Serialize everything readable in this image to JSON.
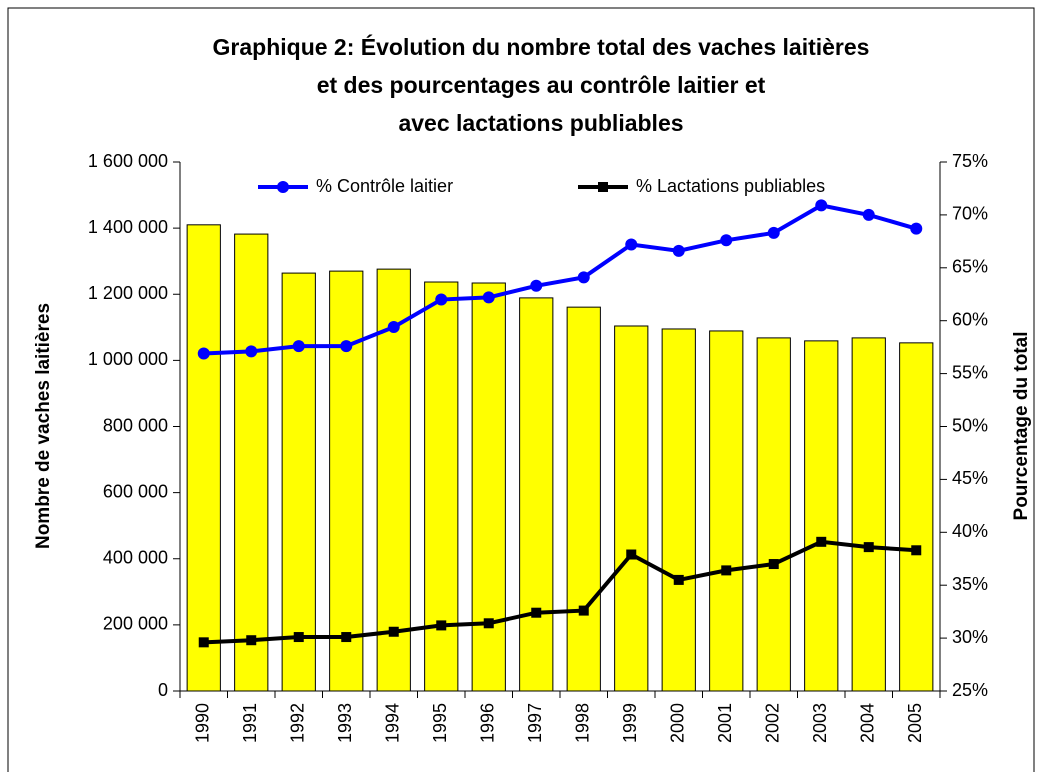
{
  "chart_data": {
    "type": "bar",
    "title": [
      "Graphique 2: Évolution du nombre total des vaches laitières",
      "et des pourcentages au contrôle laitier et",
      "avec lactations publiables"
    ],
    "y_label": "Nombre de vaches laitières",
    "y2_label": "Pourcentage du total",
    "categories": [
      "1990",
      "1991",
      "1992",
      "1993",
      "1994",
      "1995",
      "1996",
      "1997",
      "1998",
      "1999",
      "2000",
      "2001",
      "2002",
      "2003",
      "2004",
      "2005"
    ],
    "ylim": [
      0,
      1600000
    ],
    "yticks": [
      0,
      {
        "value": 200000,
        "label": "200 000"
      },
      {
        "value": 400000,
        "label": "400 000"
      },
      {
        "value": 600000,
        "label": "600 000"
      },
      {
        "value": 800000,
        "label": "800 000"
      },
      {
        "value": 1000000,
        "label": "1 000 000"
      },
      {
        "value": 1200000,
        "label": "1 200 000"
      },
      {
        "value": 1400000,
        "label": "1 400 000"
      },
      {
        "value": 1600000,
        "label": "1 600 000"
      }
    ],
    "y2lim": [
      25,
      75
    ],
    "y2ticks": [
      {
        "value": 25,
        "label": "25%"
      },
      {
        "value": 30,
        "label": "30%"
      },
      {
        "value": 35,
        "label": "35%"
      },
      {
        "value": 40,
        "label": "40%"
      },
      {
        "value": 45,
        "label": "45%"
      },
      {
        "value": 50,
        "label": "50%"
      },
      {
        "value": 55,
        "label": "55%"
      },
      {
        "value": 60,
        "label": "60%"
      },
      {
        "value": 65,
        "label": "65%"
      },
      {
        "value": 70,
        "label": "70%"
      },
      {
        "value": 75,
        "label": "75%"
      }
    ],
    "legend": "top",
    "series": [
      {
        "type": "bar",
        "color": "#ffff00",
        "values": [
          1410000,
          1382000,
          1264000,
          1270000,
          1276000,
          1237000,
          1234000,
          1189000,
          1161000,
          1104000,
          1095000,
          1089000,
          1068000,
          1059000,
          1068000,
          1053000
        ]
      },
      {
        "type": "line",
        "name": "% Contrôle laitier",
        "color": "#0000ff",
        "marker": "circle",
        "axis": "y2",
        "values": [
          56.9,
          57.1,
          57.6,
          57.6,
          59.4,
          62.0,
          62.2,
          63.3,
          64.1,
          67.2,
          66.6,
          67.6,
          68.3,
          70.9,
          70.0,
          68.7
        ]
      },
      {
        "type": "line",
        "name": "% Lactations publiables",
        "color": "#000000",
        "marker": "square",
        "axis": "y2",
        "values": [
          29.6,
          29.8,
          30.1,
          30.1,
          30.6,
          31.2,
          31.4,
          32.4,
          32.6,
          37.9,
          35.5,
          36.4,
          37.0,
          39.1,
          38.6,
          38.3
        ]
      }
    ]
  }
}
